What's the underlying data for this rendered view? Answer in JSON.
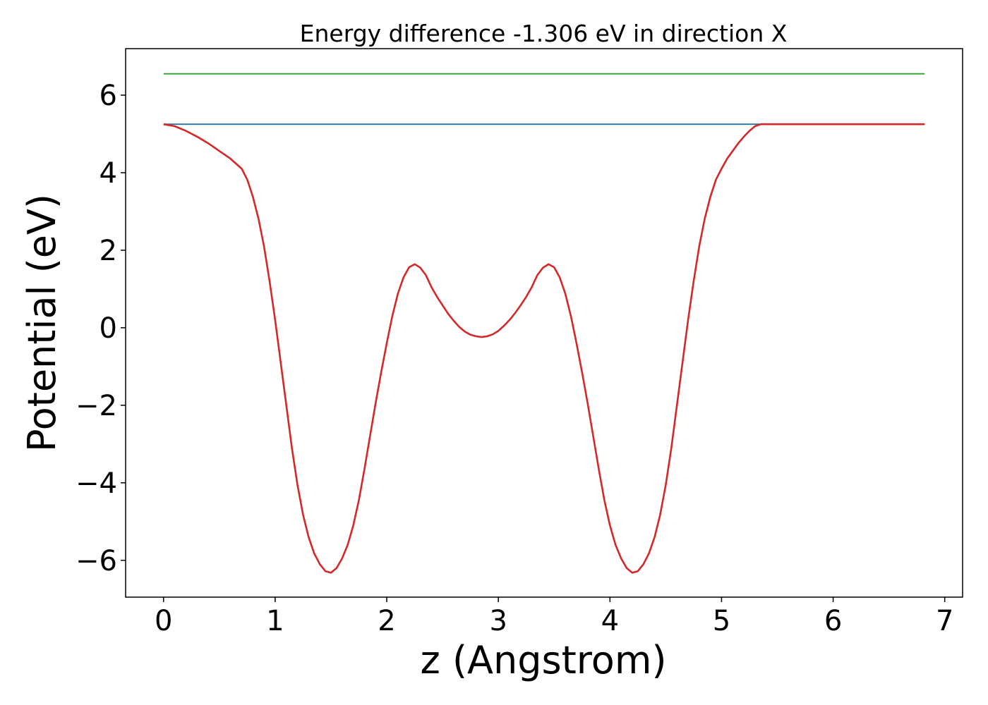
{
  "chart_data": {
    "type": "line",
    "title": "Energy difference -1.306 eV in direction X",
    "xlabel": "z (Angstrom)",
    "ylabel": "Potential (eV)",
    "xlim": [
      -0.34,
      7.16
    ],
    "ylim": [
      -6.95,
      7.2
    ],
    "xticks": [
      0,
      1,
      2,
      3,
      4,
      5,
      6,
      7
    ],
    "xtick_labels": [
      "0",
      "1",
      "2",
      "3",
      "4",
      "5",
      "6",
      "7"
    ],
    "yticks": [
      6,
      4,
      2,
      0,
      -2,
      -4,
      -6
    ],
    "ytick_labels": [
      "6",
      "4",
      "2",
      "0",
      "−2",
      "−4",
      "−6"
    ],
    "grid": false,
    "legend": "none",
    "series": [
      {
        "color": "#2ca02c",
        "x": [
          0,
          6.82
        ],
        "y": [
          6.55,
          6.55
        ]
      },
      {
        "color": "#1f77b4",
        "x": [
          0,
          6.82
        ],
        "y": [
          5.25,
          5.25
        ]
      },
      {
        "color": "#d62728",
        "x": [
          0,
          0.1,
          0.2,
          0.3,
          0.4,
          0.5,
          0.6,
          0.7,
          0.75,
          0.8,
          0.85,
          0.9,
          0.95,
          1.0,
          1.05,
          1.1,
          1.15,
          1.2,
          1.25,
          1.3,
          1.35,
          1.4,
          1.45,
          1.5,
          1.55,
          1.6,
          1.65,
          1.7,
          1.75,
          1.8,
          1.85,
          1.9,
          1.95,
          2.0,
          2.05,
          2.1,
          2.15,
          2.2,
          2.25,
          2.3,
          2.35,
          2.4,
          2.45,
          2.5,
          2.55,
          2.6,
          2.65,
          2.7,
          2.75,
          2.8,
          2.85,
          2.9,
          2.95,
          3.0,
          3.05,
          3.1,
          3.15,
          3.2,
          3.25,
          3.3,
          3.35,
          3.4,
          3.45,
          3.5,
          3.55,
          3.6,
          3.65,
          3.7,
          3.75,
          3.8,
          3.85,
          3.9,
          3.95,
          4.0,
          4.05,
          4.1,
          4.15,
          4.2,
          4.25,
          4.3,
          4.35,
          4.4,
          4.45,
          4.5,
          4.55,
          4.6,
          4.65,
          4.7,
          4.75,
          4.8,
          4.85,
          4.9,
          4.95,
          5.0,
          5.05,
          5.1,
          5.15,
          5.2,
          5.25,
          5.3,
          5.35,
          5.4,
          5.45,
          5.5,
          5.55,
          5.6,
          5.65,
          5.7,
          5.75,
          5.8,
          5.85,
          5.9,
          5.95,
          6.0,
          6.05,
          6.1,
          6.2,
          6.3,
          6.4,
          6.5,
          6.6,
          6.7,
          6.82
        ],
        "y": [
          5.25,
          5.2,
          5.08,
          4.93,
          4.76,
          4.56,
          4.36,
          4.1,
          3.82,
          3.38,
          2.82,
          2.1,
          1.2,
          0.2,
          -0.9,
          -2.0,
          -3.1,
          -4.05,
          -4.82,
          -5.4,
          -5.82,
          -6.1,
          -6.28,
          -6.32,
          -6.2,
          -5.95,
          -5.6,
          -5.1,
          -4.45,
          -3.65,
          -2.8,
          -1.95,
          -1.15,
          -0.4,
          0.3,
          0.88,
          1.3,
          1.56,
          1.64,
          1.55,
          1.36,
          1.05,
          0.8,
          0.58,
          0.36,
          0.18,
          0.02,
          -0.1,
          -0.18,
          -0.22,
          -0.24,
          -0.22,
          -0.17,
          -0.08,
          0.05,
          0.2,
          0.38,
          0.58,
          0.8,
          1.05,
          1.36,
          1.55,
          1.64,
          1.56,
          1.3,
          0.88,
          0.3,
          -0.4,
          -1.15,
          -1.95,
          -2.8,
          -3.65,
          -4.45,
          -5.1,
          -5.6,
          -5.95,
          -6.2,
          -6.32,
          -6.28,
          -6.1,
          -5.82,
          -5.4,
          -4.82,
          -4.05,
          -3.1,
          -2.0,
          -0.9,
          0.2,
          1.2,
          2.1,
          2.82,
          3.38,
          3.82,
          4.1,
          4.36,
          4.56,
          4.76,
          4.93,
          5.08,
          5.2,
          5.25,
          5.25,
          5.25,
          5.25,
          5.25,
          5.25,
          5.25,
          5.25,
          5.25,
          5.25,
          5.25,
          5.25,
          5.25,
          5.25,
          5.25,
          5.25,
          5.25,
          5.25,
          5.25,
          5.25,
          5.25,
          5.25,
          5.25
        ]
      }
    ]
  }
}
